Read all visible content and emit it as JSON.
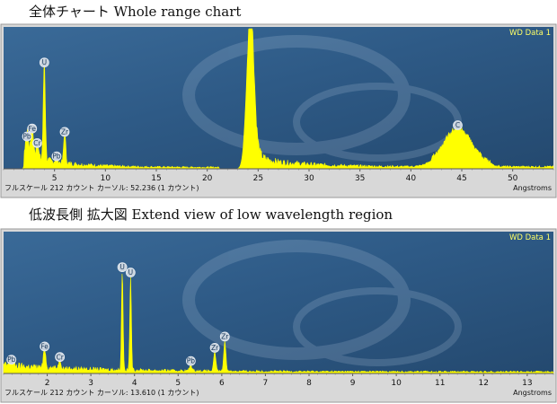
{
  "chart_data": [
    {
      "type": "line",
      "title": "全体チャート Whole range chart",
      "legend": "WD Data 1",
      "legend_position": "top-right",
      "xlabel": "Angstroms",
      "status": "フルスケール 212 カウント カーソル: 52.236 (1 カウント)",
      "xlim": [
        0,
        54
      ],
      "ylim": [
        0,
        212
      ],
      "xticks": [
        5,
        10,
        15,
        20,
        25,
        30,
        35,
        40,
        45,
        50
      ],
      "tick_labels": [
        "5",
        "10",
        "15",
        "20",
        "25",
        "30",
        "35",
        "40",
        "45",
        "50"
      ],
      "line_color": "#ffff00",
      "background_color": "#2e5a86",
      "baseline_gap": [
        21.2,
        23.9
      ],
      "peaks": [
        {
          "label": "Pb",
          "x": 2.3,
          "y": 38,
          "width": 0.15
        },
        {
          "label": "Fe",
          "x": 2.8,
          "y": 50,
          "width": 0.12
        },
        {
          "label": "Cr",
          "x": 3.3,
          "y": 28,
          "width": 0.12
        },
        {
          "label": "U",
          "x": 4.0,
          "y": 150,
          "width": 0.1
        },
        {
          "label": "Pb",
          "x": 5.2,
          "y": 8,
          "width": 0.12
        },
        {
          "label": "Zr",
          "x": 6.0,
          "y": 45,
          "width": 0.1
        },
        {
          "label": "",
          "x": 24.2,
          "y": 212,
          "width": 0.35
        },
        {
          "label": "C",
          "x": 44.6,
          "y": 55,
          "width": 1.4
        }
      ]
    },
    {
      "type": "line",
      "title": "低波長側 拡大図 Extend view of low wavelength region",
      "legend": "WD Data 1",
      "legend_position": "top-right",
      "xlabel": "Angstroms",
      "status": "フルスケール 212 カウント カーソル: 13.610 (1 カウント)",
      "xlim": [
        1.0,
        13.6
      ],
      "ylim": [
        0,
        212
      ],
      "xticks": [
        2,
        3,
        4,
        5,
        6,
        7,
        8,
        9,
        10,
        11,
        12,
        13
      ],
      "tick_labels": [
        "2",
        "3",
        "4",
        "5",
        "6",
        "7",
        "8",
        "9",
        "10",
        "11",
        "12",
        "13"
      ],
      "line_color": "#ffff00",
      "background_color": "#2e5a86",
      "baseline_gap": [],
      "peaks": [
        {
          "label": "Pb",
          "x": 1.18,
          "y": 10,
          "width": 0.04
        },
        {
          "label": "Fe",
          "x": 1.94,
          "y": 30,
          "width": 0.025
        },
        {
          "label": "Cr",
          "x": 2.29,
          "y": 14,
          "width": 0.025
        },
        {
          "label": "U",
          "x": 3.72,
          "y": 150,
          "width": 0.018
        },
        {
          "label": "U",
          "x": 3.91,
          "y": 142,
          "width": 0.018
        },
        {
          "label": "Pb",
          "x": 5.29,
          "y": 8,
          "width": 0.03
        },
        {
          "label": "Zr",
          "x": 5.84,
          "y": 28,
          "width": 0.025
        },
        {
          "label": "Zr",
          "x": 6.07,
          "y": 45,
          "width": 0.025
        }
      ]
    }
  ]
}
